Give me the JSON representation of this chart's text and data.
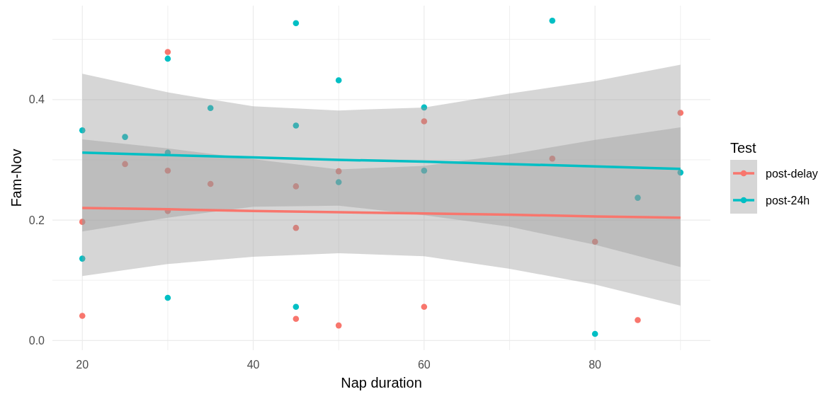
{
  "chart_data": {
    "type": "scatter",
    "xlabel": "Nap duration",
    "ylabel": "Fam-Nov",
    "legend_title": "Test",
    "legend": "right",
    "grid": true,
    "marker": "circle",
    "xlim": [
      16.5,
      93.5
    ],
    "ylim": [
      -0.016,
      0.556
    ],
    "xticks": [
      20,
      {
        "value": 30,
        "label": null
      },
      40,
      {
        "value": 50,
        "label": null
      },
      60,
      {
        "value": 70,
        "label": null
      },
      80,
      {
        "value": 90,
        "label": null
      }
    ],
    "yticks": [
      {
        "value": 0,
        "label": "0.0"
      },
      {
        "value": 0.1,
        "label": null
      },
      0.2,
      {
        "value": 0.3,
        "label": null
      },
      0.4,
      {
        "value": 0.5,
        "label": null
      }
    ],
    "series": [
      {
        "name": "post-delay",
        "color": "#f8766d",
        "x": [
          20,
          20,
          25,
          30,
          30,
          30,
          35,
          45,
          45,
          45,
          50,
          50,
          60,
          60,
          75,
          80,
          85,
          90
        ],
        "values": [
          0.197,
          0.041,
          0.293,
          0.479,
          0.282,
          0.215,
          0.26,
          0.256,
          0.187,
          0.036,
          0.281,
          0.025,
          0.364,
          0.056,
          0.302,
          0.164,
          0.034,
          0.378
        ]
      },
      {
        "name": "post-24h",
        "color": "#00bfc4",
        "x": [
          20,
          20,
          25,
          30,
          30,
          30,
          35,
          45,
          45,
          45,
          50,
          50,
          60,
          60,
          75,
          80,
          85,
          90
        ],
        "values": [
          0.349,
          0.136,
          0.338,
          0.468,
          0.312,
          0.071,
          0.386,
          0.527,
          0.357,
          0.056,
          0.432,
          0.263,
          0.387,
          0.282,
          0.531,
          0.011,
          0.237,
          0.279
        ]
      },
      {
        "type": "line",
        "marker": "none",
        "color": "#f8766d",
        "x": [
          20,
          30,
          40,
          50,
          60,
          70,
          80,
          90
        ],
        "values": [
          0.22,
          0.218,
          0.215,
          0.213,
          0.211,
          0.209,
          0.206,
          0.204
        ],
        "lower": [
          0.107,
          0.127,
          0.139,
          0.145,
          0.14,
          0.119,
          0.093,
          0.058
        ],
        "upper": [
          0.334,
          0.319,
          0.301,
          0.284,
          0.29,
          0.309,
          0.333,
          0.354
        ]
      },
      {
        "type": "line",
        "marker": "none",
        "color": "#00bfc4",
        "x": [
          20,
          30,
          40,
          50,
          60,
          70,
          80,
          90
        ],
        "values": [
          0.312,
          0.308,
          0.304,
          0.3,
          0.297,
          0.293,
          0.289,
          0.285
        ],
        "lower": [
          0.181,
          0.204,
          0.222,
          0.224,
          0.208,
          0.189,
          0.159,
          0.122
        ],
        "upper": [
          0.443,
          0.412,
          0.389,
          0.382,
          0.387,
          0.41,
          0.431,
          0.458
        ]
      }
    ]
  }
}
